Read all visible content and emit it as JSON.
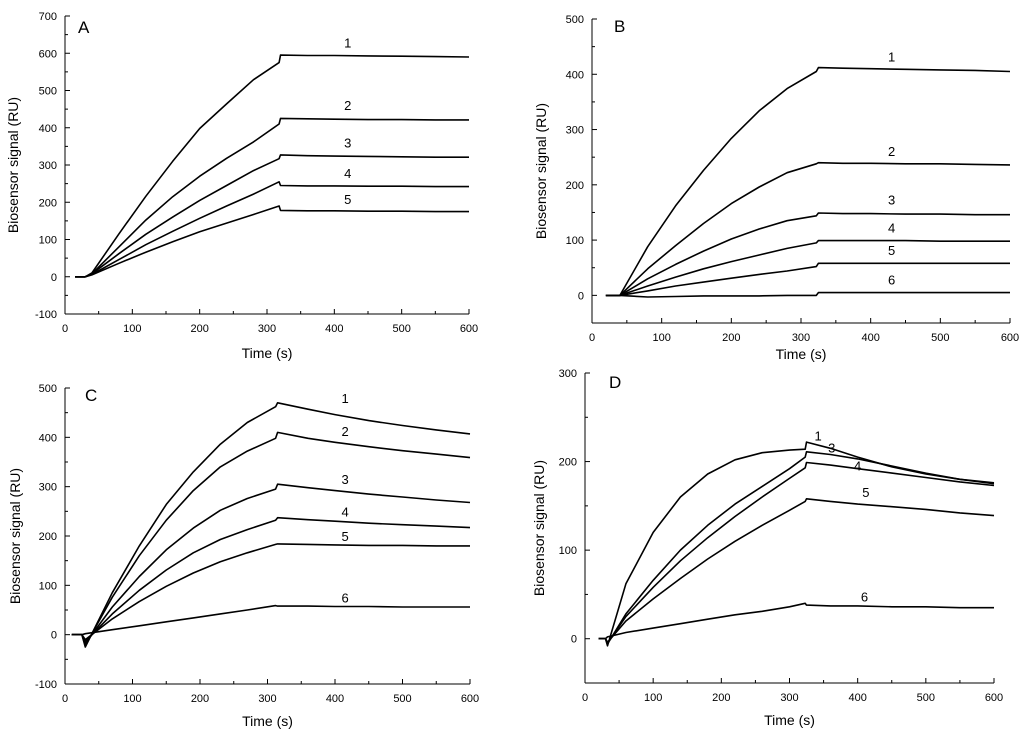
{
  "chart_data": [
    {
      "type": "line",
      "panel_label": "A",
      "xlabel": "Time (s)",
      "ylabel": "Biosensor signal (RU)",
      "xlim": [
        0,
        600
      ],
      "ylim": [
        -100,
        700
      ],
      "xticks": [
        "0",
        "100",
        "200",
        "300",
        "400",
        "500",
        "600"
      ],
      "yticks": [
        "-100",
        "0",
        "100",
        "200",
        "300",
        "400",
        "500",
        "600",
        "700"
      ],
      "grid": false,
      "series": [
        {
          "name": "1",
          "x": [
            15,
            30,
            40,
            80,
            120,
            160,
            200,
            240,
            280,
            318,
            320,
            360,
            400,
            450,
            500,
            550,
            600
          ],
          "y": [
            0,
            0,
            10,
            115,
            216,
            310,
            398,
            464,
            529,
            575,
            595,
            594,
            594,
            593,
            592,
            591,
            590
          ]
        },
        {
          "name": "2",
          "x": [
            15,
            30,
            40,
            80,
            120,
            160,
            200,
            240,
            280,
            318,
            320,
            360,
            400,
            450,
            500,
            550,
            600
          ],
          "y": [
            0,
            0,
            8,
            80,
            152,
            215,
            270,
            318,
            362,
            410,
            425,
            424,
            423,
            422,
            422,
            421,
            421
          ]
        },
        {
          "name": "3",
          "x": [
            15,
            30,
            40,
            80,
            120,
            160,
            200,
            240,
            280,
            318,
            320,
            360,
            400,
            450,
            500,
            550,
            600
          ],
          "y": [
            0,
            0,
            8,
            62,
            114,
            160,
            205,
            245,
            285,
            317,
            327,
            325,
            324,
            323,
            322,
            321,
            321
          ]
        },
        {
          "name": "4",
          "x": [
            15,
            30,
            40,
            80,
            120,
            160,
            200,
            240,
            280,
            318,
            320,
            360,
            400,
            450,
            500,
            550,
            600
          ],
          "y": [
            0,
            0,
            6,
            46,
            86,
            122,
            157,
            190,
            222,
            255,
            245,
            244,
            244,
            243,
            243,
            242,
            242
          ]
        },
        {
          "name": "5",
          "x": [
            15,
            30,
            40,
            80,
            120,
            160,
            200,
            240,
            280,
            318,
            320,
            360,
            400,
            450,
            500,
            550,
            600
          ],
          "y": [
            0,
            0,
            5,
            36,
            66,
            94,
            121,
            144,
            167,
            190,
            178,
            177,
            177,
            176,
            176,
            175,
            175
          ]
        }
      ],
      "curve_labels": [
        {
          "text": "1",
          "x": 420,
          "y": 616
        },
        {
          "text": "2",
          "x": 420,
          "y": 447
        },
        {
          "text": "3",
          "x": 420,
          "y": 347
        },
        {
          "text": "4",
          "x": 420,
          "y": 265
        },
        {
          "text": "5",
          "x": 420,
          "y": 195
        }
      ]
    },
    {
      "type": "line",
      "panel_label": "B",
      "xlabel": "Time (s)",
      "ylabel": "Biosensor signal (RU)",
      "xlim": [
        0,
        600
      ],
      "ylim": [
        -50,
        500
      ],
      "xticks": [
        "0",
        "100",
        "200",
        "300",
        "400",
        "500",
        "600"
      ],
      "yticks": [
        "0",
        "100",
        "200",
        "300",
        "400",
        "500"
      ],
      "grid": false,
      "series": [
        {
          "name": "1",
          "x": [
            20,
            40,
            80,
            120,
            160,
            200,
            240,
            280,
            322,
            325,
            360,
            400,
            450,
            500,
            550,
            600
          ],
          "y": [
            0,
            0,
            88,
            162,
            226,
            284,
            334,
            374,
            405,
            412,
            411,
            410,
            409,
            408,
            407,
            405
          ]
        },
        {
          "name": "2",
          "x": [
            20,
            40,
            80,
            120,
            160,
            200,
            240,
            280,
            322,
            325,
            360,
            400,
            450,
            500,
            550,
            600
          ],
          "y": [
            0,
            0,
            48,
            90,
            130,
            166,
            196,
            222,
            238,
            240,
            239,
            239,
            238,
            238,
            237,
            236
          ]
        },
        {
          "name": "3",
          "x": [
            20,
            40,
            80,
            120,
            160,
            200,
            240,
            280,
            322,
            325,
            360,
            400,
            450,
            500,
            550,
            600
          ],
          "y": [
            0,
            0,
            30,
            56,
            80,
            102,
            120,
            135,
            144,
            149,
            148,
            148,
            147,
            147,
            146,
            146
          ]
        },
        {
          "name": "4",
          "x": [
            20,
            40,
            80,
            120,
            160,
            200,
            240,
            280,
            322,
            325,
            360,
            400,
            450,
            500,
            550,
            600
          ],
          "y": [
            0,
            0,
            17,
            33,
            48,
            61,
            73,
            85,
            95,
            99,
            99,
            99,
            99,
            98,
            98,
            98
          ]
        },
        {
          "name": "5",
          "x": [
            20,
            40,
            80,
            120,
            160,
            200,
            240,
            280,
            322,
            325,
            360,
            400,
            450,
            500,
            550,
            600
          ],
          "y": [
            0,
            0,
            8,
            17,
            24,
            31,
            38,
            44,
            52,
            58,
            58,
            58,
            58,
            58,
            58,
            58
          ]
        },
        {
          "name": "6",
          "x": [
            20,
            40,
            80,
            120,
            160,
            200,
            240,
            280,
            322,
            325,
            360,
            400,
            450,
            500,
            550,
            600
          ],
          "y": [
            0,
            0,
            -3,
            -2,
            -1,
            -1,
            -1,
            0,
            0,
            5,
            5,
            5,
            5,
            5,
            5,
            5
          ]
        }
      ],
      "curve_labels": [
        {
          "text": "1",
          "x": 430,
          "y": 423
        },
        {
          "text": "2",
          "x": 430,
          "y": 252
        },
        {
          "text": "3",
          "x": 430,
          "y": 164
        },
        {
          "text": "4",
          "x": 430,
          "y": 114
        },
        {
          "text": "5",
          "x": 430,
          "y": 73
        },
        {
          "text": "6",
          "x": 430,
          "y": 20
        }
      ]
    },
    {
      "type": "line",
      "panel_label": "C",
      "xlabel": "Time (s)",
      "ylabel": "Biosensor signal (RU)",
      "xlim": [
        0,
        600
      ],
      "ylim": [
        -100,
        500
      ],
      "xticks": [
        "0",
        "100",
        "200",
        "300",
        "400",
        "500",
        "600"
      ],
      "yticks": [
        "-100",
        "0",
        "100",
        "200",
        "300",
        "400",
        "500"
      ],
      "grid": false,
      "series": [
        {
          "name": "1",
          "x": [
            10,
            25,
            30,
            70,
            110,
            150,
            190,
            230,
            270,
            312,
            315,
            360,
            400,
            450,
            500,
            550,
            600
          ],
          "y": [
            0,
            0,
            -25,
            85,
            180,
            264,
            330,
            386,
            430,
            462,
            470,
            457,
            446,
            434,
            424,
            415,
            407
          ]
        },
        {
          "name": "2",
          "x": [
            10,
            25,
            30,
            70,
            110,
            150,
            190,
            230,
            270,
            312,
            315,
            360,
            400,
            450,
            500,
            550,
            600
          ],
          "y": [
            0,
            0,
            -22,
            76,
            160,
            232,
            292,
            340,
            372,
            398,
            410,
            398,
            390,
            381,
            373,
            366,
            359
          ]
        },
        {
          "name": "3",
          "x": [
            10,
            25,
            30,
            70,
            110,
            150,
            190,
            230,
            270,
            312,
            315,
            360,
            400,
            450,
            500,
            550,
            600
          ],
          "y": [
            0,
            0,
            -18,
            56,
            118,
            172,
            216,
            252,
            276,
            295,
            305,
            298,
            292,
            285,
            279,
            273,
            268
          ]
        },
        {
          "name": "4",
          "x": [
            10,
            25,
            30,
            70,
            110,
            150,
            190,
            230,
            270,
            312,
            315,
            360,
            400,
            450,
            500,
            550,
            600
          ],
          "y": [
            0,
            0,
            -14,
            42,
            90,
            131,
            166,
            193,
            213,
            232,
            237,
            233,
            230,
            226,
            223,
            220,
            217
          ]
        },
        {
          "name": "5",
          "x": [
            10,
            25,
            30,
            70,
            110,
            150,
            190,
            230,
            270,
            312,
            315,
            360,
            400,
            450,
            500,
            550,
            600
          ],
          "y": [
            0,
            0,
            -10,
            32,
            67,
            98,
            125,
            148,
            166,
            183,
            184,
            183,
            182,
            181,
            181,
            180,
            180
          ]
        },
        {
          "name": "6",
          "x": [
            10,
            25,
            30,
            70,
            110,
            150,
            190,
            230,
            270,
            312,
            315,
            360,
            400,
            450,
            500,
            550,
            600
          ],
          "y": [
            0,
            0,
            2,
            10,
            18,
            26,
            34,
            42,
            50,
            59,
            58,
            58,
            57,
            57,
            56,
            56,
            56
          ]
        }
      ],
      "curve_labels": [
        {
          "text": "1",
          "x": 415,
          "y": 470
        },
        {
          "text": "2",
          "x": 415,
          "y": 403
        },
        {
          "text": "3",
          "x": 415,
          "y": 305
        },
        {
          "text": "4",
          "x": 415,
          "y": 240
        },
        {
          "text": "5",
          "x": 415,
          "y": 190
        },
        {
          "text": "6",
          "x": 415,
          "y": 65
        }
      ]
    },
    {
      "type": "line",
      "panel_label": "D",
      "xlabel": "Time (s)",
      "ylabel": "Biosensor signal (RU)",
      "xlim": [
        0,
        600
      ],
      "ylim": [
        -50,
        300
      ],
      "xticks": [
        "0",
        "100",
        "200",
        "300",
        "400",
        "500",
        "600"
      ],
      "yticks": [
        "0",
        "100",
        "200",
        "300"
      ],
      "grid": false,
      "series": [
        {
          "name": "1",
          "x": [
            20,
            30,
            33,
            60,
            100,
            140,
            180,
            220,
            260,
            300,
            323,
            325,
            360,
            400,
            450,
            500,
            550,
            600
          ],
          "y": [
            0,
            0,
            -8,
            62,
            120,
            160,
            186,
            202,
            210,
            213,
            214,
            222,
            215,
            205,
            194,
            186,
            180,
            176
          ]
        },
        {
          "name": "3",
          "x": [
            20,
            30,
            33,
            60,
            100,
            140,
            180,
            220,
            260,
            300,
            323,
            325,
            360,
            400,
            450,
            500,
            550,
            600
          ],
          "y": [
            0,
            0,
            -6,
            28,
            66,
            100,
            128,
            152,
            172,
            192,
            205,
            211,
            208,
            203,
            195,
            187,
            180,
            175
          ]
        },
        {
          "name": "4",
          "x": [
            20,
            30,
            33,
            60,
            100,
            140,
            180,
            220,
            260,
            300,
            323,
            325,
            360,
            400,
            450,
            500,
            550,
            600
          ],
          "y": [
            0,
            0,
            -5,
            25,
            58,
            88,
            114,
            138,
            160,
            181,
            193,
            199,
            196,
            192,
            187,
            182,
            177,
            173
          ]
        },
        {
          "name": "5",
          "x": [
            20,
            30,
            33,
            60,
            100,
            140,
            180,
            220,
            260,
            300,
            323,
            325,
            360,
            400,
            450,
            500,
            550,
            600
          ],
          "y": [
            0,
            0,
            -4,
            20,
            45,
            68,
            90,
            110,
            128,
            145,
            155,
            158,
            155,
            152,
            149,
            146,
            142,
            139
          ]
        },
        {
          "name": "6",
          "x": [
            20,
            30,
            33,
            60,
            100,
            140,
            180,
            220,
            260,
            300,
            323,
            325,
            360,
            400,
            450,
            500,
            550,
            600
          ],
          "y": [
            0,
            0,
            2,
            7,
            12,
            17,
            22,
            27,
            31,
            36,
            40,
            38,
            37,
            37,
            36,
            36,
            35,
            35
          ]
        }
      ],
      "curve_labels": [
        {
          "text": "1",
          "x": 342,
          "y": 224
        },
        {
          "text": "3",
          "x": 362,
          "y": 210
        },
        {
          "text": "4",
          "x": 400,
          "y": 190
        },
        {
          "text": "5",
          "x": 412,
          "y": 160
        },
        {
          "text": "6",
          "x": 410,
          "y": 42
        }
      ]
    }
  ]
}
